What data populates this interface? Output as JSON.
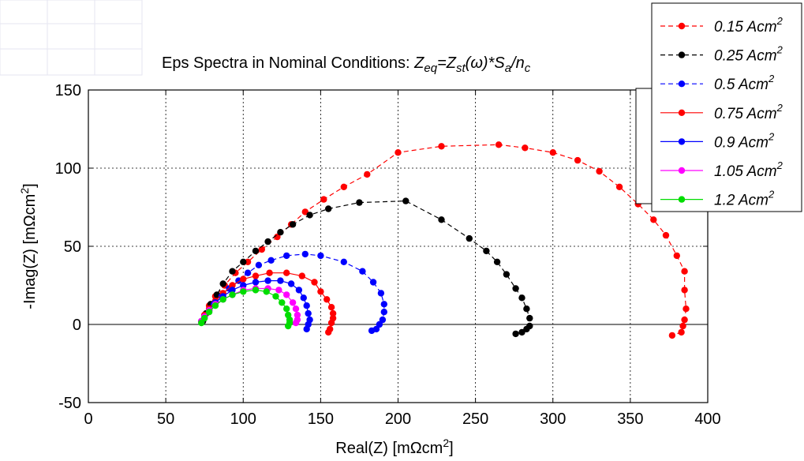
{
  "chart_data": {
    "type": "line",
    "title_parts": [
      {
        "text": "Eps Spectra in Nominal Conditions: ",
        "style": "normal"
      },
      {
        "text": "Z",
        "style": "italic"
      },
      {
        "text": "eq",
        "style": "italic-sub"
      },
      {
        "text": "=Z",
        "style": "italic"
      },
      {
        "text": "st",
        "style": "italic-sub"
      },
      {
        "text": "(",
        "style": "italic"
      },
      {
        "text": "ω",
        "style": "italic"
      },
      {
        "text": ")*S",
        "style": "italic"
      },
      {
        "text": "a",
        "style": "italic-sub"
      },
      {
        "text": "/n",
        "style": "italic"
      },
      {
        "text": "c",
        "style": "italic-sub"
      }
    ],
    "xlabel": {
      "main": "Real(Z) [mΩcm",
      "sup": "2",
      "end": "]"
    },
    "ylabel": {
      "main": "-Imag(Z) [mΩcm",
      "sup": "2",
      "end": "]"
    },
    "xlim": [
      0,
      400
    ],
    "ylim": [
      -50,
      150
    ],
    "xticks": [
      0,
      50,
      100,
      150,
      200,
      250,
      300,
      350,
      400
    ],
    "yticks": [
      -50,
      0,
      50,
      100,
      150
    ],
    "xtick_labels": [
      "0",
      "50",
      "100",
      "150",
      "200",
      "250",
      "300",
      "350",
      "400"
    ],
    "ytick_labels": [
      "-50",
      "0",
      "50",
      "100",
      "150"
    ],
    "grid": true,
    "legend_position": "top-right",
    "series": [
      {
        "name": "0.15 Acm",
        "unit_sup": "2",
        "color": "#ff0000",
        "dash": "6,4",
        "points": [
          [
            73,
            2
          ],
          [
            75,
            6
          ],
          [
            78,
            12
          ],
          [
            82,
            18
          ],
          [
            88,
            25
          ],
          [
            95,
            33
          ],
          [
            103,
            40
          ],
          [
            112,
            48
          ],
          [
            122,
            56
          ],
          [
            131,
            64
          ],
          [
            140,
            72
          ],
          [
            152,
            80
          ],
          [
            165,
            88
          ],
          [
            180,
            96
          ],
          [
            200,
            110
          ],
          [
            228,
            114
          ],
          [
            265,
            115
          ],
          [
            282,
            113
          ],
          [
            300,
            110
          ],
          [
            316,
            105
          ],
          [
            330,
            98
          ],
          [
            343,
            88
          ],
          [
            355,
            77
          ],
          [
            365,
            67
          ],
          [
            373,
            57
          ],
          [
            380,
            44
          ],
          [
            385,
            34
          ],
          [
            385,
            22
          ],
          [
            386,
            10
          ],
          [
            385,
            3
          ],
          [
            384,
            -1
          ],
          [
            383,
            -5
          ],
          [
            377,
            -7
          ]
        ]
      },
      {
        "name": "0.25 Acm",
        "unit_sup": "2",
        "color": "#000000",
        "dash": "6,4",
        "points": [
          [
            74,
            2
          ],
          [
            76,
            7
          ],
          [
            79,
            13
          ],
          [
            83,
            19
          ],
          [
            87,
            26
          ],
          [
            93,
            34
          ],
          [
            100,
            40
          ],
          [
            108,
            47
          ],
          [
            116,
            53
          ],
          [
            124,
            59
          ],
          [
            132,
            64
          ],
          [
            143,
            70
          ],
          [
            155,
            74
          ],
          [
            175,
            78
          ],
          [
            205,
            79
          ],
          [
            228,
            67
          ],
          [
            246,
            55
          ],
          [
            257,
            47
          ],
          [
            264,
            40
          ],
          [
            270,
            32
          ],
          [
            276,
            23
          ],
          [
            280,
            17
          ],
          [
            283,
            10
          ],
          [
            285,
            4
          ],
          [
            285,
            -1
          ],
          [
            283,
            -3
          ],
          [
            280,
            -5
          ],
          [
            276,
            -6
          ]
        ]
      },
      {
        "name": "0.5 Acm",
        "unit_sup": "2",
        "color": "#0000ff",
        "dash": "6,4",
        "points": [
          [
            73,
            2
          ],
          [
            75,
            5
          ],
          [
            78,
            9
          ],
          [
            81,
            13
          ],
          [
            86,
            18
          ],
          [
            91,
            23
          ],
          [
            97,
            28
          ],
          [
            103,
            33
          ],
          [
            110,
            38
          ],
          [
            118,
            41
          ],
          [
            128,
            44
          ],
          [
            140,
            45
          ],
          [
            150,
            44
          ],
          [
            165,
            40
          ],
          [
            177,
            34
          ],
          [
            184,
            27
          ],
          [
            189,
            20
          ],
          [
            191,
            13
          ],
          [
            191,
            8
          ],
          [
            190,
            3
          ],
          [
            188,
            0
          ],
          [
            186,
            -3
          ],
          [
            183,
            -4
          ]
        ]
      },
      {
        "name": "0.75 Acm",
        "unit_sup": "2",
        "color": "#ff0000",
        "dash": "none",
        "points": [
          [
            73,
            2
          ],
          [
            75,
            6
          ],
          [
            78,
            10
          ],
          [
            82,
            15
          ],
          [
            87,
            20
          ],
          [
            93,
            25
          ],
          [
            100,
            29
          ],
          [
            108,
            31
          ],
          [
            117,
            33
          ],
          [
            128,
            33
          ],
          [
            138,
            31
          ],
          [
            146,
            27
          ],
          [
            150,
            21
          ],
          [
            154,
            16
          ],
          [
            157,
            11
          ],
          [
            158,
            7
          ],
          [
            158,
            4
          ],
          [
            157,
            1
          ],
          [
            156,
            -3
          ],
          [
            155,
            -5
          ]
        ]
      },
      {
        "name": "0.9 Acm",
        "unit_sup": "2",
        "color": "#0000ff",
        "dash": "none",
        "points": [
          [
            73,
            2
          ],
          [
            75,
            5
          ],
          [
            78,
            9
          ],
          [
            82,
            14
          ],
          [
            87,
            18
          ],
          [
            93,
            22
          ],
          [
            100,
            25
          ],
          [
            108,
            27
          ],
          [
            116,
            28
          ],
          [
            124,
            28
          ],
          [
            131,
            26
          ],
          [
            136,
            22
          ],
          [
            139,
            17
          ],
          [
            141,
            12
          ],
          [
            142,
            7
          ],
          [
            143,
            3
          ],
          [
            142,
            0
          ],
          [
            141,
            -3
          ]
        ]
      },
      {
        "name": "1.05 Acm",
        "unit_sup": "2",
        "color": "#ff00ff",
        "dash": "none",
        "points": [
          [
            73,
            2
          ],
          [
            75,
            5
          ],
          [
            78,
            9
          ],
          [
            82,
            13
          ],
          [
            87,
            16
          ],
          [
            93,
            19
          ],
          [
            100,
            22
          ],
          [
            108,
            23
          ],
          [
            116,
            23
          ],
          [
            123,
            22
          ],
          [
            128,
            19
          ],
          [
            132,
            14
          ],
          [
            134,
            10
          ],
          [
            135,
            6
          ],
          [
            135,
            3
          ],
          [
            134,
            1
          ]
        ]
      },
      {
        "name": "1.2 Acm",
        "unit_sup": "2",
        "color": "#00dd00",
        "dash": "none",
        "points": [
          [
            73,
            1
          ],
          [
            75,
            4
          ],
          [
            78,
            8
          ],
          [
            82,
            12
          ],
          [
            87,
            16
          ],
          [
            93,
            19
          ],
          [
            100,
            21
          ],
          [
            108,
            22
          ],
          [
            115,
            21
          ],
          [
            121,
            18
          ],
          [
            125,
            14
          ],
          [
            128,
            10
          ],
          [
            129,
            6
          ],
          [
            130,
            3
          ],
          [
            130,
            1
          ],
          [
            129,
            -1
          ]
        ]
      }
    ]
  }
}
